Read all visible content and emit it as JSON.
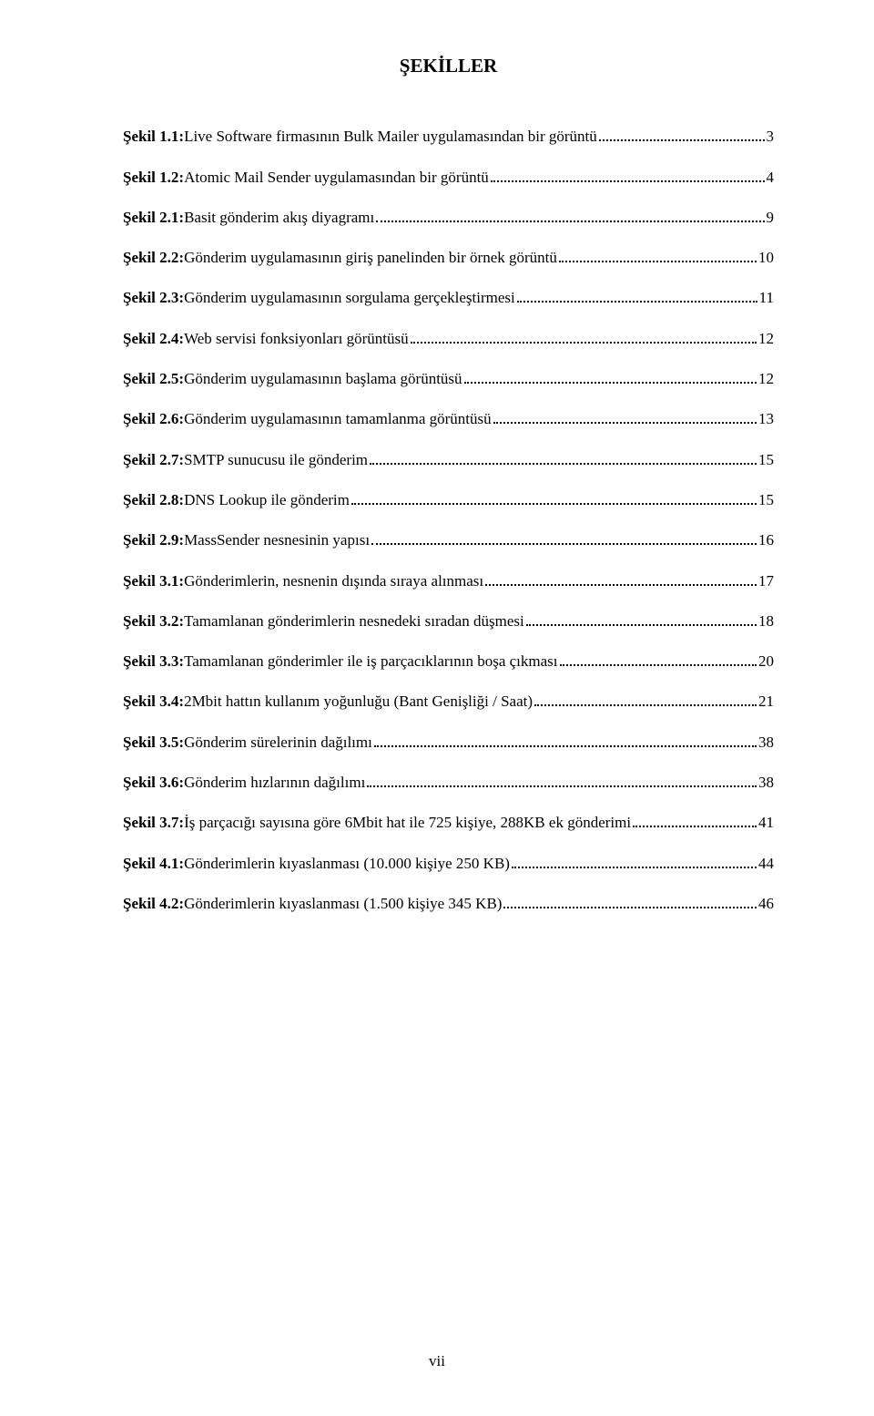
{
  "title": "ŞEKİLLER",
  "footer": "vii",
  "entries": [
    {
      "label": "Şekil 1.1:",
      "desc": " Live Software firmasının Bulk Mailer uygulamasından bir görüntü",
      "page": "3"
    },
    {
      "label": "Şekil 1.2:",
      "desc": " Atomic Mail Sender uygulamasından bir görüntü",
      "page": "4"
    },
    {
      "label": "Şekil 2.1:",
      "desc": " Basit gönderim akış diyagramı",
      "page": "9"
    },
    {
      "label": "Şekil 2.2:",
      "desc": " Gönderim uygulamasının giriş panelinden bir örnek görüntü",
      "page": "10"
    },
    {
      "label": "Şekil 2.3:",
      "desc": " Gönderim uygulamasının sorgulama gerçekleştirmesi",
      "page": "11"
    },
    {
      "label": "Şekil 2.4:",
      "desc": " Web servisi fonksiyonları görüntüsü",
      "page": "12"
    },
    {
      "label": "Şekil 2.5:",
      "desc": " Gönderim uygulamasının başlama görüntüsü",
      "page": "12"
    },
    {
      "label": "Şekil 2.6:",
      "desc": " Gönderim uygulamasının tamamlanma görüntüsü",
      "page": "13"
    },
    {
      "label": "Şekil 2.7:",
      "desc": " SMTP sunucusu ile gönderim",
      "page": "15"
    },
    {
      "label": "Şekil 2.8:",
      "desc": " DNS Lookup ile gönderim",
      "page": "15"
    },
    {
      "label": "Şekil 2.9:",
      "desc": " MassSender nesnesinin yapısı",
      "page": "16"
    },
    {
      "label": "Şekil 3.1:",
      "desc": " Gönderimlerin, nesnenin dışında sıraya alınması",
      "page": "17"
    },
    {
      "label": "Şekil 3.2:",
      "desc": " Tamamlanan gönderimlerin nesnedeki sıradan düşmesi",
      "page": "18"
    },
    {
      "label": "Şekil 3.3:",
      "desc": " Tamamlanan gönderimler ile iş parçacıklarının boşa çıkması",
      "page": "20"
    },
    {
      "label": "Şekil 3.4:",
      "desc": " 2Mbit hattın kullanım yoğunluğu (Bant Genişliği / Saat)",
      "page": "21"
    },
    {
      "label": "Şekil 3.5:",
      "desc": " Gönderim sürelerinin dağılımı",
      "page": "38"
    },
    {
      "label": "Şekil 3.6:",
      "desc": " Gönderim hızlarının dağılımı",
      "page": "38"
    },
    {
      "label": "Şekil 3.7:",
      "desc": " İş parçacığı sayısına göre 6Mbit hat ile 725 kişiye, 288KB ek gönderimi",
      "page": "41"
    },
    {
      "label": "Şekil 4.1:",
      "desc": " Gönderimlerin kıyaslanması (10.000 kişiye 250 KB)",
      "page": "44"
    },
    {
      "label": "Şekil 4.2:",
      "desc": " Gönderimlerin kıyaslanması (1.500 kişiye 345 KB)",
      "page": "46"
    }
  ]
}
